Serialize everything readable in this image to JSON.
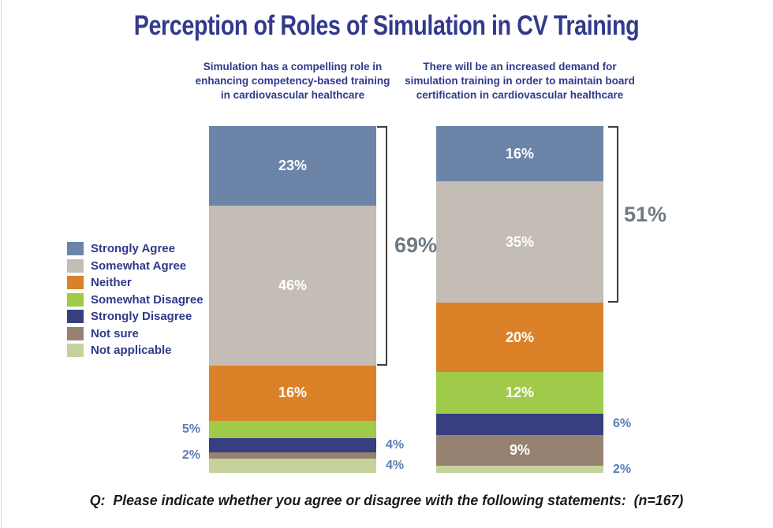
{
  "page": {
    "title": "Perception of Roles of Simulation in CV Training",
    "footnote": "Q:  Please indicate whether you agree or disagree with the following statements:  (n=167)",
    "sample_size": "n=167"
  },
  "style": {
    "title_color": "#333a8c",
    "text_navy": "#2f3a8c",
    "bracket_line_color": "#3c3c3c",
    "bracket_label_color": "#6e7b85",
    "outside_label_color": "#5b7eb4",
    "inside_label_color": "#ffffff",
    "footnote_color": "#1a1a1a",
    "background": "#ffffff"
  },
  "chart_data": {
    "type": "bar",
    "stacked": true,
    "orientation": "vertical",
    "value_unit": "percent",
    "legend_position": "left",
    "grid": false,
    "categories": [
      "Strongly Agree",
      "Somewhat Agree",
      "Neither",
      "Somewhat Disagree",
      "Strongly Disagree",
      "Not sure",
      "Not applicable"
    ],
    "series_colors": [
      "#6b84a8",
      "#c3bdb5",
      "#db8229",
      "#a0ca49",
      "#373f80",
      "#968270",
      "#c5d29c"
    ],
    "bars": [
      {
        "title": "Simulation has a compelling role in enhancing competency-based training in cardiovascular healthcare",
        "values": [
          23,
          46,
          16,
          5,
          4,
          2,
          4
        ],
        "value_labels": [
          "23%",
          "46%",
          "16%",
          "5%",
          "4%",
          "2%",
          "4%"
        ],
        "label_placement": [
          "inside",
          "inside",
          "inside",
          "left",
          "right",
          "left",
          "right"
        ],
        "bracket": {
          "label": "69%",
          "span_percent": 69,
          "span_categories": [
            "Strongly Agree",
            "Somewhat Agree"
          ]
        }
      },
      {
        "title": "There will be an increased demand for simulation training in order to maintain board certification in cardiovascular healthcare",
        "values": [
          16,
          35,
          20,
          12,
          6,
          9,
          2
        ],
        "value_labels": [
          "16%",
          "35%",
          "20%",
          "12%",
          "6%",
          "9%",
          "2%"
        ],
        "label_placement": [
          "inside",
          "inside",
          "inside",
          "inside",
          "right",
          "inside",
          "right"
        ],
        "bracket": {
          "label": "51%",
          "span_percent": 51,
          "span_categories": [
            "Strongly Agree",
            "Somewhat Agree"
          ]
        }
      }
    ]
  }
}
